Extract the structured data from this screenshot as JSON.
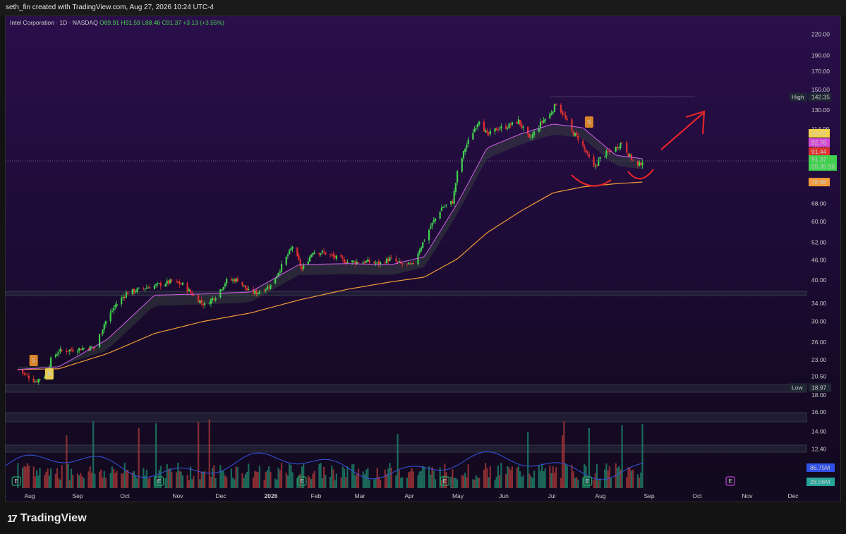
{
  "header": {
    "text": "seth_fin created with TradingView.com, Aug 27, 2026 10:24 UTC-4"
  },
  "legend": {
    "title": "Intel Corporation · 1D · NASDAQ",
    "o": "O89.91",
    "h": "H91.59",
    "l": "L88.46",
    "c": "C91.37",
    "chg": "+3.13 (+3.55%)"
  },
  "brand": {
    "name": "TradingView",
    "icon": "tradingview-logo-icon"
  },
  "colors": {
    "up": "#26a69a",
    "down": "#ef5350",
    "green": "#41d14e",
    "red": "#e0302f",
    "ema": "#f29a37",
    "sma": "#d160e8"
  },
  "chart_data": {
    "type": "candlestick",
    "symbol": "Intel Corporation",
    "interval": "1D",
    "exchange": "NASDAQ",
    "y_scale": "log",
    "ylim": [
      12,
      240
    ],
    "y_ticks": [
      "220.00",
      "190.00",
      "170.00",
      "150.00",
      "130.00",
      "114.00",
      "100.00",
      "68.00",
      "60.00",
      "52.00",
      "46.00",
      "40.00",
      "34.00",
      "30.00",
      "26.00",
      "23.00",
      "20.50",
      "18.00",
      "16.00",
      "14.00",
      "12.40"
    ],
    "x_ticks": [
      "Aug",
      "Sep",
      "Oct",
      "Nov",
      "Dec",
      "2026",
      "Feb",
      "Mar",
      "Apr",
      "May",
      "Jun",
      "Jul",
      "Aug",
      "Sep",
      "Oct",
      "Nov",
      "Dec"
    ],
    "close_path": [
      [
        "2025-07-25",
        21.5
      ],
      [
        "2025-08-05",
        19.8
      ],
      [
        "2025-08-12",
        20.8
      ],
      [
        "2025-08-15",
        23.0
      ],
      [
        "2025-08-20",
        24.4
      ],
      [
        "2025-08-27",
        24.6
      ],
      [
        "2025-09-05",
        24.9
      ],
      [
        "2025-09-12",
        25.1
      ],
      [
        "2025-09-18",
        29.5
      ],
      [
        "2025-09-25",
        33.5
      ],
      [
        "2025-10-02",
        36.5
      ],
      [
        "2025-10-10",
        37.4
      ],
      [
        "2025-10-17",
        38.2
      ],
      [
        "2025-10-24",
        38.8
      ],
      [
        "2025-10-31",
        39.6
      ],
      [
        "2025-11-07",
        38.7
      ],
      [
        "2025-11-14",
        35.9
      ],
      [
        "2025-11-21",
        33.6
      ],
      [
        "2025-11-28",
        35.8
      ],
      [
        "2025-12-05",
        39.8
      ],
      [
        "2025-12-12",
        40.1
      ],
      [
        "2025-12-19",
        36.9
      ],
      [
        "2025-12-24",
        36.6
      ],
      [
        "2026-01-02",
        38.5
      ],
      [
        "2026-01-09",
        44.0
      ],
      [
        "2026-01-16",
        50.5
      ],
      [
        "2026-01-22",
        43.0
      ],
      [
        "2026-01-29",
        48.8
      ],
      [
        "2026-02-05",
        48.3
      ],
      [
        "2026-02-12",
        46.8
      ],
      [
        "2026-02-19",
        45.5
      ],
      [
        "2026-02-26",
        45.3
      ],
      [
        "2026-03-05",
        45.4
      ],
      [
        "2026-03-12",
        44.8
      ],
      [
        "2026-03-19",
        46.3
      ],
      [
        "2026-03-26",
        44.7
      ],
      [
        "2026-04-02",
        44.2
      ],
      [
        "2026-04-07",
        49.5
      ],
      [
        "2026-04-14",
        58.0
      ],
      [
        "2026-04-21",
        66.0
      ],
      [
        "2026-04-28",
        68.8
      ],
      [
        "2026-05-01",
        84.0
      ],
      [
        "2026-05-06",
        100.0
      ],
      [
        "2026-05-11",
        112.0
      ],
      [
        "2026-05-15",
        122.0
      ],
      [
        "2026-05-20",
        109.0
      ],
      [
        "2026-05-26",
        114.0
      ],
      [
        "2026-06-02",
        116.0
      ],
      [
        "2026-06-09",
        120.5
      ],
      [
        "2026-06-16",
        106.0
      ],
      [
        "2026-06-19",
        111.0
      ],
      [
        "2026-06-24",
        120.0
      ],
      [
        "2026-06-29",
        126.0
      ],
      [
        "2026-07-03",
        136.0
      ],
      [
        "2026-07-08",
        125.0
      ],
      [
        "2026-07-13",
        112.0
      ],
      [
        "2026-07-17",
        107.0
      ],
      [
        "2026-07-22",
        97.0
      ],
      [
        "2026-07-27",
        87.0
      ],
      [
        "2026-07-31",
        93.0
      ],
      [
        "2026-08-05",
        97.0
      ],
      [
        "2026-08-10",
        100.0
      ],
      [
        "2026-08-14",
        104.0
      ],
      [
        "2026-08-19",
        94.0
      ],
      [
        "2026-08-24",
        88.0
      ],
      [
        "2026-08-27",
        91.37
      ]
    ],
    "ema_path": [
      [
        "2025-07-25",
        21.5
      ],
      [
        "2025-08-20",
        21.6
      ],
      [
        "2025-09-20",
        24.0
      ],
      [
        "2025-10-20",
        27.6
      ],
      [
        "2025-11-20",
        30.0
      ],
      [
        "2025-12-20",
        31.8
      ],
      [
        "2026-01-20",
        34.8
      ],
      [
        "2026-02-20",
        37.5
      ],
      [
        "2026-03-20",
        39.5
      ],
      [
        "2026-04-10",
        40.8
      ],
      [
        "2026-05-01",
        46.3
      ],
      [
        "2026-05-20",
        55.5
      ],
      [
        "2026-06-10",
        64.3
      ],
      [
        "2026-07-01",
        73.2
      ],
      [
        "2026-07-20",
        76.3
      ],
      [
        "2026-08-10",
        78.0
      ],
      [
        "2026-08-27",
        78.88
      ]
    ],
    "sma_path": [
      [
        "2025-07-25",
        21.5
      ],
      [
        "2025-08-20",
        21.9
      ],
      [
        "2025-09-20",
        26.5
      ],
      [
        "2025-10-20",
        36.0
      ],
      [
        "2025-11-20",
        36.3
      ],
      [
        "2025-12-20",
        36.8
      ],
      [
        "2026-01-20",
        44.5
      ],
      [
        "2026-02-20",
        44.8
      ],
      [
        "2026-03-20",
        44.5
      ],
      [
        "2026-04-10",
        47.0
      ],
      [
        "2026-05-01",
        68.0
      ],
      [
        "2026-05-20",
        100.0
      ],
      [
        "2026-06-10",
        110.0
      ],
      [
        "2026-07-01",
        118.0
      ],
      [
        "2026-07-20",
        115.0
      ],
      [
        "2026-08-10",
        95.0
      ],
      [
        "2026-08-27",
        92.76
      ]
    ],
    "price_labels": [
      {
        "name": "High",
        "text": "142.35",
        "value": 142.35,
        "color": "#1e2733"
      },
      {
        "text": "94.87",
        "value": 94.87,
        "color": "#f5d24b"
      },
      {
        "text": "92.76",
        "value": 92.76,
        "color": "#d64ad6"
      },
      {
        "text": "91.44",
        "value": 91.44,
        "color": "#e0302f"
      },
      {
        "text": "91.37",
        "sub": "05:35:36",
        "value": 91.37,
        "color": "#41d14e"
      },
      {
        "text": "78.88",
        "value": 78.88,
        "color": "#f29a37"
      },
      {
        "name": "Low",
        "text": "18.97",
        "value": 18.97,
        "color": "#1e2733"
      }
    ],
    "volume_labels": [
      {
        "text": "86.75M",
        "color": "#3051e8"
      },
      {
        "text": "28.06M",
        "color": "#26a69a"
      }
    ],
    "markers": [
      {
        "date": "2025-08-04",
        "text": "S",
        "kind": "sell"
      },
      {
        "date": "2025-08-14",
        "text": "B",
        "kind": "buy"
      },
      {
        "date": "2026-07-24",
        "text": "S",
        "kind": "sell"
      }
    ],
    "earnings_markers": [
      {
        "date": "2025-07-24",
        "text": "E"
      },
      {
        "date": "2025-10-23",
        "text": "E"
      },
      {
        "date": "2026-01-22",
        "text": "E"
      },
      {
        "date": "2026-04-23",
        "text": "E"
      },
      {
        "date": "2026-07-23",
        "text": "E"
      },
      {
        "date": "2026-10-22",
        "text": "E"
      }
    ],
    "annotations": [
      "red arrow pointing up-right",
      "two red arcs under recent lows"
    ],
    "grid": false
  }
}
